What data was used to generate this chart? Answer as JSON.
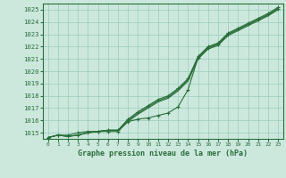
{
  "title": "Graphe pression niveau de la mer (hPa)",
  "bg_color": "#cce8dd",
  "grid_color": "#99ccbb",
  "line_color": "#2a6e3a",
  "ylim": [
    1014.5,
    1025.5
  ],
  "xlim": [
    -0.5,
    23.5
  ],
  "yticks": [
    1015,
    1016,
    1017,
    1018,
    1019,
    1020,
    1021,
    1022,
    1023,
    1024,
    1025
  ],
  "xticks": [
    0,
    1,
    2,
    3,
    4,
    5,
    6,
    7,
    8,
    9,
    10,
    11,
    12,
    13,
    14,
    15,
    16,
    17,
    18,
    19,
    20,
    21,
    22,
    23
  ],
  "series_smooth1": [
    1014.6,
    1014.8,
    1014.7,
    1014.8,
    1015.0,
    1015.1,
    1015.2,
    1015.2,
    1015.9,
    1016.5,
    1017.0,
    1017.5,
    1017.8,
    1018.4,
    1019.2,
    1021.0,
    1021.8,
    1022.1,
    1022.9,
    1023.3,
    1023.7,
    1024.1,
    1024.5,
    1025.0
  ],
  "series_smooth2": [
    1014.6,
    1014.8,
    1014.7,
    1014.8,
    1015.0,
    1015.1,
    1015.2,
    1015.2,
    1016.0,
    1016.6,
    1017.1,
    1017.6,
    1017.9,
    1018.5,
    1019.3,
    1021.1,
    1021.9,
    1022.2,
    1023.0,
    1023.4,
    1023.8,
    1024.2,
    1024.6,
    1025.1
  ],
  "series_marked1": [
    1014.6,
    1014.8,
    1014.7,
    1014.8,
    1015.0,
    1015.1,
    1015.2,
    1015.2,
    1016.1,
    1016.7,
    1017.2,
    1017.7,
    1018.0,
    1018.6,
    1019.4,
    1021.2,
    1022.0,
    1022.3,
    1023.1,
    1023.5,
    1023.9,
    1024.3,
    1024.7,
    1025.2
  ],
  "series_dip": [
    1014.6,
    1014.8,
    1014.8,
    1015.0,
    1015.1,
    1015.1,
    1015.1,
    1015.1,
    1015.9,
    1016.1,
    1016.2,
    1016.4,
    1016.6,
    1017.1,
    1018.5,
    1021.1,
    1021.9,
    1022.2,
    1023.0,
    1023.4,
    1023.8,
    1024.2,
    1024.6,
    1025.1
  ]
}
